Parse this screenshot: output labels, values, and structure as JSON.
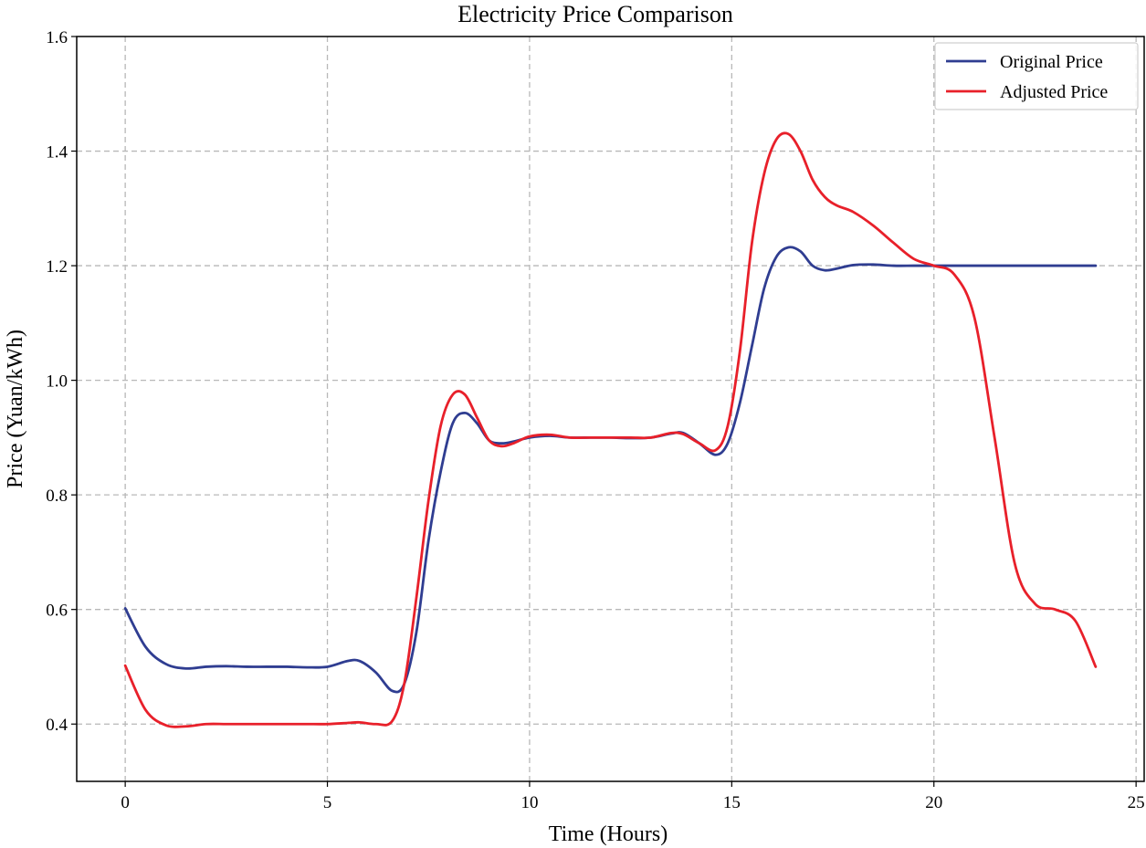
{
  "chart_data": {
    "type": "line",
    "title": "Electricity Price Comparison",
    "xlabel": "Time (Hours)",
    "ylabel": "Price (Yuan/kWh)",
    "xlim": [
      -1.2,
      25.2
    ],
    "ylim": [
      0.3,
      1.6
    ],
    "xticks": [
      0,
      5,
      10,
      15,
      20,
      25
    ],
    "yticks": [
      0.4,
      0.6,
      0.8,
      1.0,
      1.2,
      1.4,
      1.6
    ],
    "grid": true,
    "legend_position": "top-right",
    "series": [
      {
        "name": "Original Price",
        "color": "#2f3d91",
        "x": [
          0,
          0.5,
          1,
          1.5,
          2,
          2.5,
          3,
          3.5,
          4,
          4.5,
          5,
          5.5,
          5.8,
          6.2,
          6.6,
          6.9,
          7.2,
          7.5,
          7.8,
          8.1,
          8.4,
          8.7,
          9,
          9.3,
          9.6,
          10,
          10.5,
          11,
          11.5,
          12,
          12.5,
          13,
          13.5,
          13.8,
          14.2,
          14.6,
          14.9,
          15.2,
          15.5,
          15.8,
          16.1,
          16.4,
          16.7,
          17,
          17.3,
          17.6,
          18,
          18.5,
          19,
          19.5,
          20,
          20.5,
          21,
          22,
          23,
          24
        ],
        "values": [
          0.602,
          0.535,
          0.505,
          0.497,
          0.5,
          0.501,
          0.5,
          0.5,
          0.5,
          0.499,
          0.5,
          0.51,
          0.51,
          0.49,
          0.458,
          0.47,
          0.56,
          0.72,
          0.84,
          0.925,
          0.943,
          0.925,
          0.895,
          0.89,
          0.893,
          0.9,
          0.903,
          0.9,
          0.9,
          0.9,
          0.899,
          0.9,
          0.907,
          0.908,
          0.89,
          0.87,
          0.89,
          0.96,
          1.06,
          1.16,
          1.215,
          1.232,
          1.225,
          1.2,
          1.192,
          1.195,
          1.201,
          1.202,
          1.2,
          1.2,
          1.2,
          1.2,
          1.2,
          1.2,
          1.2,
          1.2
        ]
      },
      {
        "name": "Adjusted Price",
        "color": "#e8202a",
        "x": [
          0,
          0.5,
          1,
          1.5,
          2,
          2.5,
          3,
          3.5,
          4,
          4.5,
          5,
          5.5,
          5.8,
          6.2,
          6.6,
          6.9,
          7.2,
          7.5,
          7.8,
          8.1,
          8.4,
          8.7,
          9,
          9.3,
          9.6,
          10,
          10.5,
          11,
          11.5,
          12,
          12.5,
          13,
          13.5,
          13.8,
          14.2,
          14.6,
          14.9,
          15.2,
          15.5,
          15.8,
          16.1,
          16.4,
          16.7,
          17,
          17.3,
          17.6,
          18,
          18.5,
          19,
          19.5,
          20,
          20.5,
          21,
          21.5,
          22,
          22.5,
          23,
          23.5,
          24
        ],
        "values": [
          0.502,
          0.425,
          0.398,
          0.396,
          0.4,
          0.4,
          0.4,
          0.4,
          0.4,
          0.4,
          0.4,
          0.402,
          0.403,
          0.4,
          0.405,
          0.47,
          0.62,
          0.79,
          0.92,
          0.975,
          0.975,
          0.935,
          0.895,
          0.885,
          0.89,
          0.902,
          0.905,
          0.9,
          0.9,
          0.9,
          0.9,
          0.9,
          0.908,
          0.906,
          0.89,
          0.878,
          0.92,
          1.05,
          1.24,
          1.36,
          1.42,
          1.43,
          1.4,
          1.35,
          1.32,
          1.305,
          1.294,
          1.27,
          1.24,
          1.212,
          1.2,
          1.185,
          1.11,
          0.9,
          0.68,
          0.61,
          0.6,
          0.58,
          0.5
        ]
      }
    ]
  }
}
